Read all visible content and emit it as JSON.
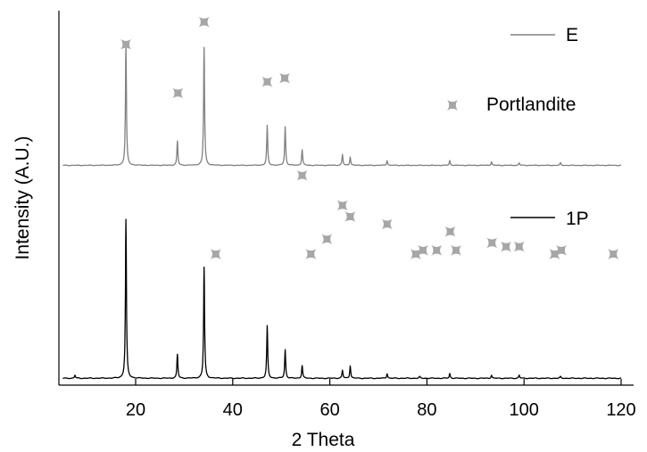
{
  "chart_data": {
    "type": "line",
    "xlabel": "2 Theta",
    "ylabel": "Intensity (A.U.)",
    "xlim": [
      5,
      120
    ],
    "x_ticks": [
      20,
      40,
      60,
      80,
      100,
      120
    ],
    "y_ticks_shown": false,
    "grid": false,
    "legend": [
      {
        "label": "E",
        "kind": "line",
        "color": "#808080"
      },
      {
        "label": "Portlandite",
        "kind": "marker",
        "color": "#a6a6a6"
      },
      {
        "label": "1P",
        "kind": "line",
        "color": "#000000"
      }
    ],
    "series": [
      {
        "name": "E",
        "color": "#808080",
        "baseline": 0.4,
        "peaks": [
          [
            18.0,
            100
          ],
          [
            28.6,
            20
          ],
          [
            34.1,
            98
          ],
          [
            47.1,
            33
          ],
          [
            50.8,
            32
          ],
          [
            54.3,
            13
          ],
          [
            62.6,
            9
          ],
          [
            64.2,
            7
          ],
          [
            71.8,
            4
          ],
          [
            84.7,
            4
          ],
          [
            93.3,
            3
          ],
          [
            99.0,
            2
          ],
          [
            107.5,
            2
          ]
        ]
      },
      {
        "name": "1P",
        "color": "#000000",
        "baseline": 0.4,
        "peaks": [
          [
            7.5,
            2
          ],
          [
            18.0,
            100
          ],
          [
            28.6,
            15
          ],
          [
            34.1,
            70
          ],
          [
            47.1,
            33
          ],
          [
            50.8,
            18
          ],
          [
            54.3,
            8
          ],
          [
            62.6,
            5
          ],
          [
            64.2,
            8
          ],
          [
            71.8,
            3
          ],
          [
            78.5,
            1
          ],
          [
            84.7,
            3
          ],
          [
            93.3,
            2
          ],
          [
            99.0,
            2
          ],
          [
            107.5,
            1
          ]
        ]
      }
    ],
    "markers": {
      "name": "Portlandite",
      "color": "#a6a6a6",
      "points": [
        [
          18.0,
          0.91
        ],
        [
          28.7,
          0.78
        ],
        [
          34.1,
          0.97
        ],
        [
          36.5,
          0.35
        ],
        [
          47.1,
          0.81
        ],
        [
          50.7,
          0.82
        ],
        [
          54.3,
          0.56
        ],
        [
          56.1,
          0.35
        ],
        [
          59.4,
          0.39
        ],
        [
          62.6,
          0.48
        ],
        [
          64.2,
          0.45
        ],
        [
          71.8,
          0.43
        ],
        [
          77.7,
          0.35
        ],
        [
          79.2,
          0.36
        ],
        [
          82.0,
          0.36
        ],
        [
          84.8,
          0.41
        ],
        [
          86.0,
          0.36
        ],
        [
          93.4,
          0.38
        ],
        [
          96.3,
          0.37
        ],
        [
          99.0,
          0.37
        ],
        [
          106.3,
          0.35
        ],
        [
          107.7,
          0.36
        ],
        [
          118.4,
          0.35
        ]
      ]
    }
  }
}
